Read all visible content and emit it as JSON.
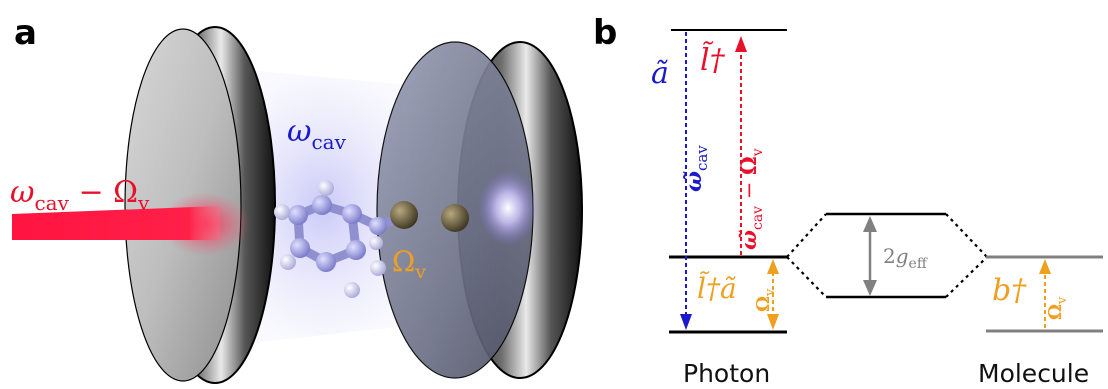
{
  "panel_a": {
    "label": "a",
    "cavity_label": {
      "symbol": "ω",
      "subscript": "cav"
    },
    "laser_label": {
      "symbol1": "ω",
      "sub1": "cav",
      "minus": " − ",
      "symbol2": "Ω",
      "sub2": "v"
    },
    "vibration_label": {
      "symbol": "Ω",
      "subscript": "v"
    }
  },
  "panel_b": {
    "label": "b",
    "a_tilde": "ã",
    "l_dagger": "l̃†",
    "omega_cav_tilde": {
      "symbol": "ω̃",
      "subscript": "cav"
    },
    "omega_diff": {
      "symbol": "ω̃",
      "sub1": "cav",
      "minus": " − ",
      "symbol2": "Ω",
      "sub2": "v"
    },
    "l_dagger_a": "l̃†ã",
    "omega_v_left": {
      "symbol": "Ω",
      "subscript": "v"
    },
    "coupling": {
      "prefix": "2",
      "symbol": "g",
      "subscript": "eff"
    },
    "b_dagger": "b†",
    "omega_v_right": {
      "symbol": "Ω",
      "subscript": "v"
    },
    "photon_word": "Photon",
    "molecule_word": "Molecule"
  },
  "colors": {
    "blue": "#1a1acc",
    "red": "#e8102a",
    "orange": "#f0a020",
    "gray": "#808080",
    "black": "#000000"
  }
}
